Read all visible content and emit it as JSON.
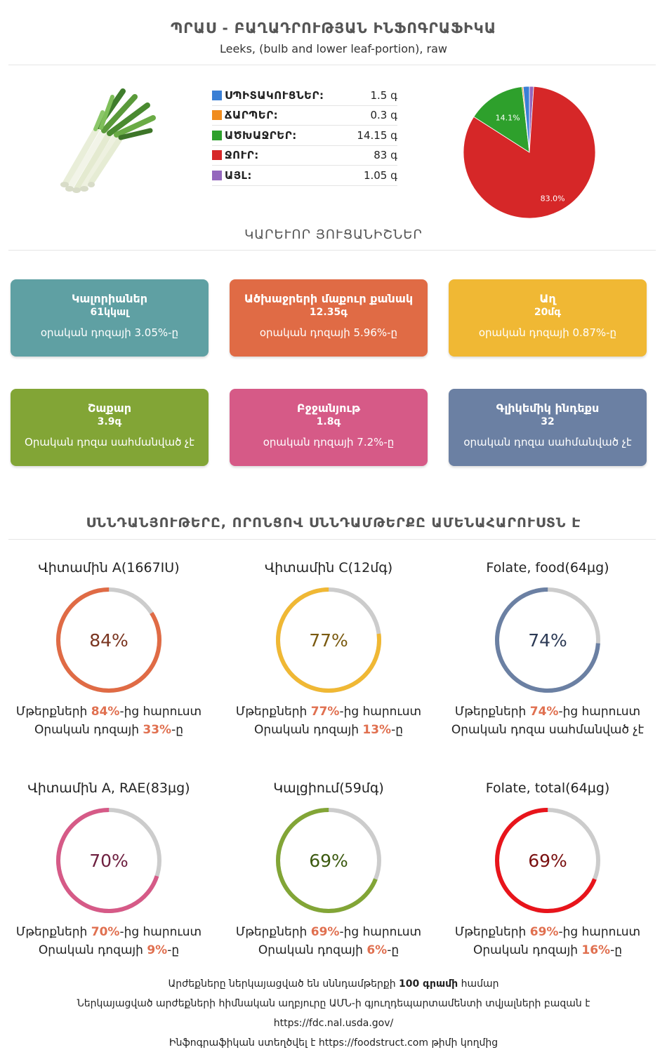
{
  "header": {
    "title": "ՊՐԱՍ - ԲԱՂԱԴՐՈՒԹՅԱՆ ԻՆՖՈԳՐԱՖԻԿԱ",
    "subtitle": "Leeks, (bulb and lower leaf-portion), raw"
  },
  "composition": [
    {
      "label": "ՍՊԻՏԱԿՈՒՑՆԵՐ:",
      "value": "1.5 գ",
      "color": "#3a7fd5"
    },
    {
      "label": "ՃԱՐՊԵՐ:",
      "value": "0.3 գ",
      "color": "#f08c1e"
    },
    {
      "label": "ԱԾԽԱՋՐԵՐ:",
      "value": "14.15 գ",
      "color": "#2ea02c"
    },
    {
      "label": "ՋՈՒՐ:",
      "value": "83 գ",
      "color": "#d62728"
    },
    {
      "label": "ԱՅԼ:",
      "value": "1.05 գ",
      "color": "#9467bd"
    }
  ],
  "chart_data": {
    "type": "pie",
    "categories": [
      "ՍՊԻՏԱԿՈՒՑՆԵՐ",
      "ՃԱՐՊԵՐ",
      "ԱԾԽԱՋՐԵՐ",
      "ՋՈՒՐ",
      "ԱՅԼ"
    ],
    "values": [
      1.5,
      0.3,
      14.15,
      83,
      1.05
    ],
    "colors": [
      "#3a7fd5",
      "#f08c1e",
      "#2ea02c",
      "#d62728",
      "#9467bd"
    ],
    "data_labels": [
      "",
      "",
      "14.1%",
      "83.0%",
      ""
    ]
  },
  "sections": {
    "key_facts": "ԿԱՐԵՒՈՐ ՅՈՒՑԱՆԻՇՆԵՐ",
    "nutrients": "ՍՆՆԴԱՆՅՈՒԹԵՐԸ, ՈՐՈՆՑՈՎ ՍՆՆԴԱՄԹԵՐՔԸ ԱՄԵՆԱՀԱՐՈՒՍՏՆ Է"
  },
  "cards": [
    {
      "name": "Կալորիաներ",
      "value": "61կկալ",
      "daily": "օրական դոզայի 3.05%-ը",
      "color": "#5fa0a3"
    },
    {
      "name": "Ածխաջրերի մաքուր քանակ",
      "value": "12.35գ",
      "daily": "օրական դոզայի 5.96%-ը",
      "color": "#e06b45"
    },
    {
      "name": "Աղ",
      "value": "20մգ",
      "daily": "օրական դոզայի 0.87%-ը",
      "color": "#f0b834"
    },
    {
      "name": "Շաքար",
      "value": "3.9գ",
      "daily": "Օրական դոզա սահմանված չէ",
      "color": "#82a536"
    },
    {
      "name": "Բջջանյութ",
      "value": "1.8գ",
      "daily": "օրական դոզայի 7.2%-ը",
      "color": "#d65a87"
    },
    {
      "name": "Գլիկեմիկ ինդեքս",
      "value": "32",
      "daily": "օրական դոզա սահմանված չէ",
      "color": "#6b80a3"
    }
  ],
  "nutrients": [
    {
      "title": "Վիտամին A(1667IU)",
      "pct": 84,
      "pct_label": "84%",
      "color": "#e06b45",
      "text_color": "#7a3520",
      "line1_pre": "Մթերքների ",
      "line1_hl": "84%",
      "line1_post": "-ից հարուստ",
      "line2_pre": "Օրական դոզայի ",
      "line2_hl": "33%",
      "line2_post": "-ը"
    },
    {
      "title": "Վիտամին C(12մգ)",
      "pct": 77,
      "pct_label": "77%",
      "color": "#f0b834",
      "text_color": "#7a5a10",
      "line1_pre": "Մթերքների ",
      "line1_hl": "77%",
      "line1_post": "-ից հարուստ",
      "line2_pre": "Օրական դոզայի ",
      "line2_hl": "13%",
      "line2_post": "-ը"
    },
    {
      "title": "Folate, food(64µg)",
      "pct": 74,
      "pct_label": "74%",
      "color": "#6b80a3",
      "text_color": "#2c3a55",
      "line1_pre": "Մթերքների ",
      "line1_hl": "74%",
      "line1_post": "-ից հարուստ",
      "line2_pre": "Օրական դոզա սահմանված չէ",
      "line2_hl": "",
      "line2_post": ""
    },
    {
      "title": "Վիտամին A, RAE(83µg)",
      "pct": 70,
      "pct_label": "70%",
      "color": "#d65a87",
      "text_color": "#6e2040",
      "line1_pre": "Մթերքների ",
      "line1_hl": "70%",
      "line1_post": "-ից հարուստ",
      "line2_pre": "Օրական դոզայի ",
      "line2_hl": "9%",
      "line2_post": "-ը"
    },
    {
      "title": "Կալցիում(59մգ)",
      "pct": 69,
      "pct_label": "69%",
      "color": "#82a536",
      "text_color": "#3c5a10",
      "line1_pre": "Մթերքների ",
      "line1_hl": "69%",
      "line1_post": "-ից հարուստ",
      "line2_pre": "Օրական դոզայի ",
      "line2_hl": "6%",
      "line2_post": "-ը"
    },
    {
      "title": "Folate, total(64µg)",
      "pct": 69,
      "pct_label": "69%",
      "color": "#e8141b",
      "text_color": "#7a1010",
      "line1_pre": "Մթերքների ",
      "line1_hl": "69%",
      "line1_post": "-ից հարուստ",
      "line2_pre": "Օրական դոզայի ",
      "line2_hl": "16%",
      "line2_post": "-ը"
    }
  ],
  "footer": {
    "line1_pre": "Արժեքները ներկայացված են սննդամթերքի ",
    "line1_bold": "100 գրամի",
    "line1_post": " համար",
    "line2": "Ներկայացված արժեքների հիմնական աղբյուրը ԱՄՆ-ի գյուղդեպարտամենտի տվյալների բազան է",
    "line3": "https://fdc.nal.usda.gov/",
    "line4_pre": "Ինֆոգրաֆիկան ստեղծվել է ",
    "line4_link": "https://foodstruct.com",
    "line4_post": " թիմի կողմից"
  }
}
